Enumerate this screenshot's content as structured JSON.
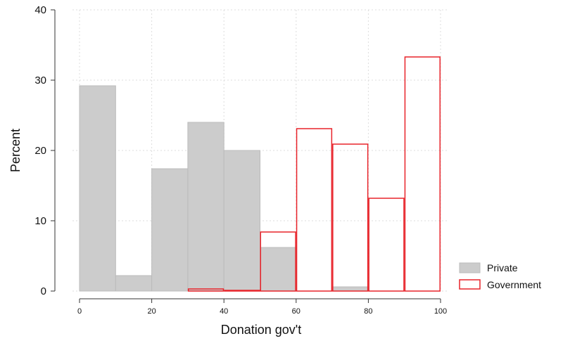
{
  "chart_data": {
    "type": "bar",
    "title": "",
    "xlabel": "Donation gov't",
    "ylabel": "Percent",
    "xlim": [
      0,
      100
    ],
    "ylim": [
      0,
      40
    ],
    "xticks": [
      0,
      20,
      40,
      60,
      80,
      100
    ],
    "yticks": [
      0,
      10,
      20,
      30,
      40
    ],
    "grid": true,
    "legend_position": "bottom-right",
    "bin_width": 10,
    "series": [
      {
        "name": "Private",
        "style": "filled",
        "fill_color": "#cccccc",
        "edge_color": "#bbbbbb",
        "bins": [
          {
            "x0": 0,
            "x1": 10,
            "value": 29.2
          },
          {
            "x0": 10,
            "x1": 20,
            "value": 2.2
          },
          {
            "x0": 20,
            "x1": 30,
            "value": 17.4
          },
          {
            "x0": 30,
            "x1": 40,
            "value": 24.0
          },
          {
            "x0": 40,
            "x1": 50,
            "value": 20.0
          },
          {
            "x0": 50,
            "x1": 60,
            "value": 6.2
          },
          {
            "x0": 70,
            "x1": 80,
            "value": 0.6
          }
        ]
      },
      {
        "name": "Government",
        "style": "outline",
        "fill_color": "none",
        "edge_color": "#e8232a",
        "bins": [
          {
            "x0": 30,
            "x1": 40,
            "value": 0.3
          },
          {
            "x0": 40,
            "x1": 50,
            "value": 0.1
          },
          {
            "x0": 50,
            "x1": 60,
            "value": 8.4
          },
          {
            "x0": 60,
            "x1": 70,
            "value": 23.1
          },
          {
            "x0": 70,
            "x1": 80,
            "value": 20.9
          },
          {
            "x0": 80,
            "x1": 90,
            "value": 13.2
          },
          {
            "x0": 90,
            "x1": 100,
            "value": 33.3
          }
        ]
      }
    ]
  }
}
